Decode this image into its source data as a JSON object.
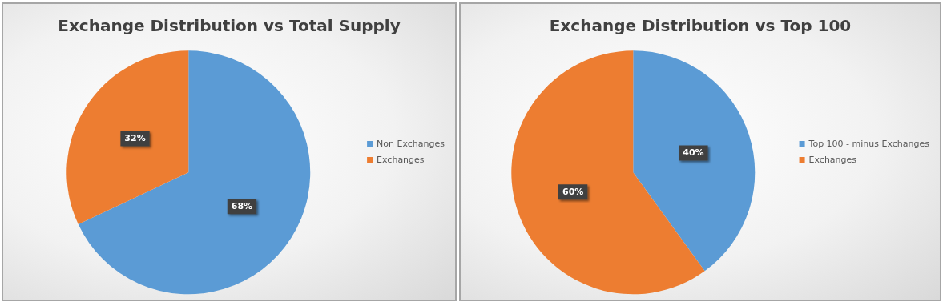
{
  "chart_data": [
    {
      "type": "pie",
      "title": "Exchange Distribution vs Total Supply",
      "categories": [
        "Non Exchanges",
        "Exchanges"
      ],
      "values": [
        68,
        32
      ],
      "colors": [
        "#5b9bd5",
        "#ed7d31"
      ],
      "value_labels": [
        "68%",
        "32%"
      ],
      "legend": "right"
    },
    {
      "type": "pie",
      "title": "Exchange Distribution vs Top 100",
      "categories": [
        "Top 100 - minus Exchanges",
        "Exchanges"
      ],
      "values": [
        40,
        60
      ],
      "colors": [
        "#5b9bd5",
        "#ed7d31"
      ],
      "value_labels": [
        "40%",
        "60%"
      ],
      "legend": "right"
    }
  ]
}
